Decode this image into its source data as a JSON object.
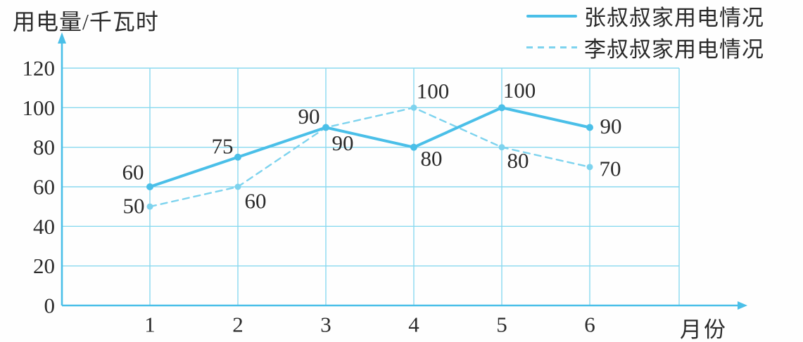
{
  "chart": {
    "y_axis_title": "用电量/千瓦时",
    "x_axis_title": "月份",
    "legend": [
      {
        "label": "张叔叔家用电情况",
        "style": "solid"
      },
      {
        "label": "李叔叔家用电情况",
        "style": "dashed"
      }
    ],
    "colors": {
      "solid_series": "#4abfe8",
      "dashed_series": "#7dd3ee",
      "grid": "#8ad9ef",
      "axis": "#4abfe8",
      "label_text": "#2b2b2b"
    }
  },
  "chart_data": {
    "type": "line",
    "categories": [
      "1",
      "2",
      "3",
      "4",
      "5",
      "6"
    ],
    "series": [
      {
        "name": "张叔叔家用电情况",
        "line_style": "solid",
        "values": [
          60,
          75,
          90,
          80,
          100,
          90
        ],
        "label_offsets": [
          [
            -24,
            -21
          ],
          [
            -22,
            -16
          ],
          [
            -24,
            -16
          ],
          [
            25,
            16
          ],
          [
            25,
            -25
          ],
          [
            30,
            -2
          ]
        ]
      },
      {
        "name": "李叔叔家用电情况",
        "line_style": "dashed",
        "values": [
          50,
          60,
          90,
          100,
          80,
          70
        ],
        "label_offsets": [
          [
            -23,
            -1
          ],
          [
            25,
            20
          ],
          [
            24,
            22
          ],
          [
            27,
            -24
          ],
          [
            23,
            19
          ],
          [
            29,
            2
          ]
        ]
      }
    ],
    "title": "",
    "xlabel": "月份",
    "ylabel": "用电量/千瓦时",
    "ylim": [
      0,
      120
    ],
    "y_ticks": [
      0,
      20,
      40,
      60,
      80,
      100,
      120
    ],
    "grid": true,
    "legend_position": "top-right"
  }
}
